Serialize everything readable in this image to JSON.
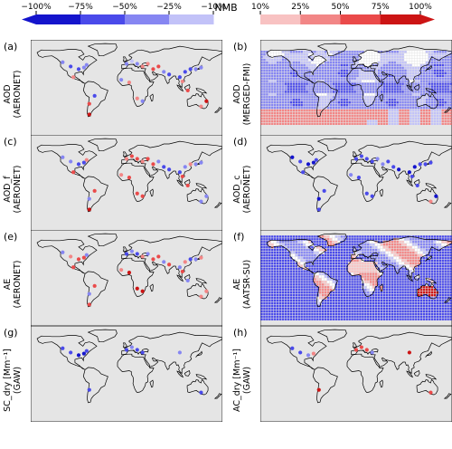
{
  "colorbar": {
    "title": "NMB",
    "neg_ticks": [
      "−100%",
      "−75%",
      "−50%",
      "−25%",
      "−10%"
    ],
    "pos_ticks": [
      "10%",
      "25%",
      "50%",
      "75%",
      "100%"
    ],
    "neg_colors": [
      "#1414cc",
      "#4a4aea",
      "#8686f2",
      "#c2c2f8"
    ],
    "pos_colors": [
      "#f8c2c2",
      "#f28686",
      "#ea4a4a",
      "#cc1414"
    ]
  },
  "panels": [
    {
      "id": "a",
      "label": "(a)",
      "ylabel": [
        "AOD",
        "(AERONET)"
      ],
      "kind": "sites",
      "sites": [
        [
          -120,
          48,
          -0.3
        ],
        [
          -105,
          40,
          -0.5
        ],
        [
          -90,
          35,
          -0.6
        ],
        [
          -80,
          38,
          -0.4
        ],
        [
          -75,
          43,
          -0.3
        ],
        [
          -100,
          20,
          0.4
        ],
        [
          -60,
          -15,
          -0.5
        ],
        [
          -70,
          -30,
          0.7
        ],
        [
          -70,
          -50,
          0.9
        ],
        [
          0,
          45,
          -0.3
        ],
        [
          10,
          50,
          -0.2
        ],
        [
          20,
          45,
          -0.3
        ],
        [
          30,
          40,
          0.3
        ],
        [
          40,
          45,
          0.4
        ],
        [
          50,
          35,
          0.5
        ],
        [
          60,
          40,
          0.6
        ],
        [
          70,
          30,
          -0.4
        ],
        [
          80,
          25,
          -0.5
        ],
        [
          100,
          20,
          -0.6
        ],
        [
          110,
          30,
          -0.7
        ],
        [
          120,
          35,
          -0.5
        ],
        [
          130,
          35,
          -0.4
        ],
        [
          140,
          38,
          -0.3
        ],
        [
          105,
          12,
          0.3
        ],
        [
          115,
          -5,
          0.5
        ],
        [
          150,
          -25,
          0.8
        ],
        [
          20,
          -20,
          0.4
        ],
        [
          30,
          -25,
          -0.3
        ],
        [
          -10,
          15,
          -0.4
        ],
        [
          5,
          10,
          0.3
        ],
        [
          140,
          -35,
          0.4
        ]
      ]
    },
    {
      "id": "b",
      "label": "(b)",
      "ylabel": [
        "AOD",
        "(MERGED-FMI)"
      ],
      "kind": "grid",
      "mode": "aod"
    },
    {
      "id": "c",
      "label": "(c)",
      "ylabel": [
        "AOD_f",
        "(AERONET)"
      ],
      "kind": "sites",
      "sites": [
        [
          -120,
          48,
          -0.4
        ],
        [
          -105,
          40,
          -0.3
        ],
        [
          -90,
          35,
          -0.5
        ],
        [
          -80,
          38,
          -0.6
        ],
        [
          -75,
          43,
          0.4
        ],
        [
          -100,
          20,
          0.5
        ],
        [
          -60,
          -15,
          0.6
        ],
        [
          -70,
          -30,
          -0.4
        ],
        [
          -70,
          -50,
          0.8
        ],
        [
          0,
          45,
          0.4
        ],
        [
          10,
          50,
          0.5
        ],
        [
          20,
          45,
          0.6
        ],
        [
          30,
          40,
          0.3
        ],
        [
          40,
          45,
          0.5
        ],
        [
          50,
          35,
          0.7
        ],
        [
          60,
          40,
          -0.4
        ],
        [
          70,
          30,
          -0.5
        ],
        [
          80,
          25,
          -0.6
        ],
        [
          100,
          20,
          -0.5
        ],
        [
          110,
          30,
          -0.4
        ],
        [
          120,
          35,
          0.3
        ],
        [
          130,
          35,
          -0.4
        ],
        [
          140,
          38,
          -0.3
        ],
        [
          105,
          12,
          0.5
        ],
        [
          115,
          -5,
          0.6
        ],
        [
          150,
          -25,
          -0.4
        ],
        [
          20,
          -20,
          0.5
        ],
        [
          30,
          -25,
          0.6
        ],
        [
          -10,
          15,
          0.4
        ],
        [
          5,
          10,
          0.5
        ],
        [
          140,
          -35,
          -0.4
        ]
      ]
    },
    {
      "id": "d",
      "label": "(d)",
      "ylabel": [
        "AOD_c",
        "(AERONET)"
      ],
      "kind": "sites",
      "sites": [
        [
          -120,
          48,
          -0.8
        ],
        [
          -105,
          40,
          -0.7
        ],
        [
          -90,
          35,
          -0.9
        ],
        [
          -80,
          38,
          -0.8
        ],
        [
          -75,
          43,
          -0.7
        ],
        [
          -100,
          20,
          -0.6
        ],
        [
          -60,
          -15,
          -0.7
        ],
        [
          -70,
          -30,
          -0.8
        ],
        [
          -70,
          -50,
          -0.6
        ],
        [
          0,
          45,
          -0.5
        ],
        [
          10,
          50,
          -0.6
        ],
        [
          20,
          45,
          -0.7
        ],
        [
          30,
          40,
          -0.5
        ],
        [
          40,
          45,
          -0.4
        ],
        [
          50,
          35,
          -0.3
        ],
        [
          60,
          40,
          -0.6
        ],
        [
          70,
          30,
          -0.7
        ],
        [
          80,
          25,
          -0.8
        ],
        [
          100,
          20,
          -0.9
        ],
        [
          110,
          30,
          -0.8
        ],
        [
          120,
          35,
          -0.7
        ],
        [
          130,
          35,
          -0.6
        ],
        [
          140,
          38,
          -0.5
        ],
        [
          105,
          12,
          -0.6
        ],
        [
          115,
          -5,
          -0.7
        ],
        [
          150,
          -25,
          -0.8
        ],
        [
          20,
          -20,
          -0.5
        ],
        [
          30,
          -25,
          -0.6
        ],
        [
          -10,
          15,
          -0.4
        ],
        [
          5,
          10,
          -0.5
        ],
        [
          140,
          -35,
          0.4
        ]
      ]
    },
    {
      "id": "e",
      "label": "(e)",
      "ylabel": [
        "AE",
        "(AERONET)"
      ],
      "kind": "sites",
      "sites": [
        [
          -120,
          48,
          -0.3
        ],
        [
          -105,
          40,
          0.4
        ],
        [
          -90,
          35,
          0.5
        ],
        [
          -80,
          38,
          0.6
        ],
        [
          -75,
          43,
          -0.4
        ],
        [
          -100,
          20,
          0.7
        ],
        [
          -60,
          -15,
          0.5
        ],
        [
          -70,
          -30,
          -0.4
        ],
        [
          -70,
          -50,
          0.6
        ],
        [
          0,
          45,
          -0.5
        ],
        [
          10,
          50,
          -0.4
        ],
        [
          20,
          45,
          -0.6
        ],
        [
          30,
          40,
          0.3
        ],
        [
          40,
          45,
          -0.4
        ],
        [
          50,
          35,
          0.5
        ],
        [
          60,
          40,
          0.6
        ],
        [
          70,
          30,
          -0.4
        ],
        [
          80,
          25,
          0.5
        ],
        [
          100,
          20,
          -0.3
        ],
        [
          110,
          30,
          0.4
        ],
        [
          120,
          35,
          -0.5
        ],
        [
          130,
          35,
          -0.4
        ],
        [
          140,
          38,
          0.3
        ],
        [
          105,
          12,
          0.5
        ],
        [
          115,
          -5,
          -0.3
        ],
        [
          150,
          -25,
          0.4
        ],
        [
          20,
          -20,
          0.9
        ],
        [
          30,
          -25,
          0.8
        ],
        [
          -10,
          15,
          0.4
        ],
        [
          5,
          10,
          0.9
        ],
        [
          140,
          -35,
          0.4
        ]
      ]
    },
    {
      "id": "f",
      "label": "(f)",
      "ylabel": [
        "AE",
        "(AATSR-SU)"
      ],
      "kind": "grid",
      "mode": "ae"
    },
    {
      "id": "g",
      "label": "(g)",
      "ylabel": [
        "SC_dry [Mm⁻¹]",
        "(GAW)"
      ],
      "kind": "sites",
      "sites": [
        [
          -120,
          48,
          -0.6
        ],
        [
          -105,
          40,
          -0.7
        ],
        [
          -90,
          35,
          -0.8
        ],
        [
          -80,
          38,
          -0.9
        ],
        [
          -75,
          43,
          -0.7
        ],
        [
          0,
          45,
          -0.5
        ],
        [
          10,
          50,
          -0.4
        ],
        [
          20,
          45,
          -0.6
        ],
        [
          30,
          40,
          -0.5
        ],
        [
          100,
          40,
          -0.4
        ],
        [
          140,
          -35,
          -0.5
        ],
        [
          -70,
          -30,
          -0.5
        ]
      ]
    },
    {
      "id": "h",
      "label": "(h)",
      "ylabel": [
        "AC_dry [Mm⁻¹]",
        "(GAW)"
      ],
      "kind": "sites",
      "sites": [
        [
          -120,
          48,
          -0.6
        ],
        [
          -105,
          40,
          -0.5
        ],
        [
          -90,
          35,
          -0.4
        ],
        [
          -80,
          38,
          0.4
        ],
        [
          0,
          45,
          0.6
        ],
        [
          10,
          50,
          0.7
        ],
        [
          20,
          45,
          0.5
        ],
        [
          30,
          40,
          -0.3
        ],
        [
          100,
          40,
          0.8
        ],
        [
          140,
          -35,
          0.6
        ],
        [
          -70,
          -30,
          0.9
        ]
      ]
    }
  ]
}
